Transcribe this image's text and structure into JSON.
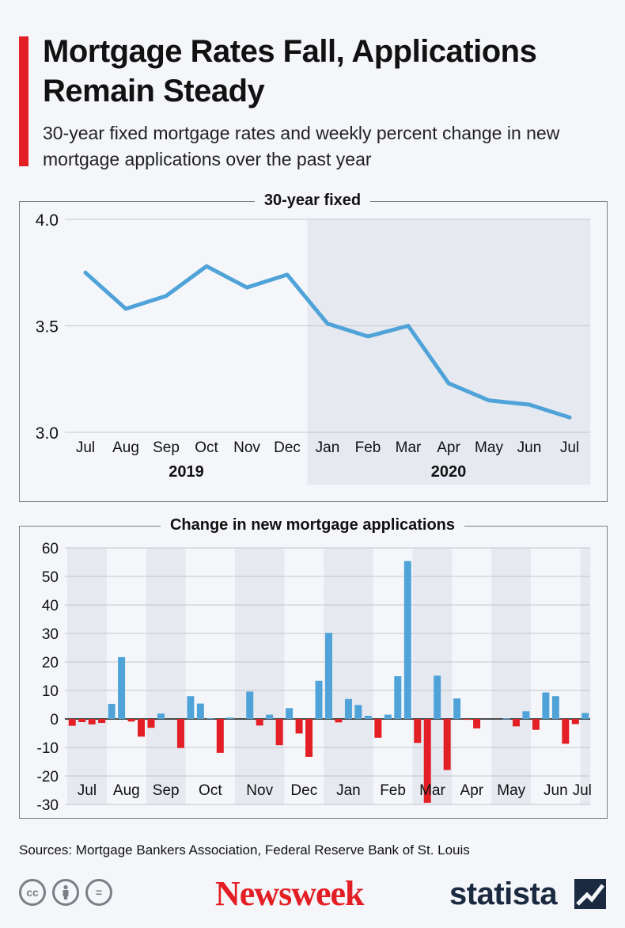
{
  "header": {
    "title": "Mortgage Rates Fall, Applications Remain Steady",
    "subtitle": "30-year fixed mortgage rates and weekly percent change in new mortgage applications over the past year"
  },
  "colors": {
    "accent": "#e31e24",
    "line": "#4fa3d8",
    "positive": "#4fa3d8",
    "negative": "#e31e24",
    "shade": "#e6e9f0",
    "grid": "#c3c7cd"
  },
  "chart_data": [
    {
      "type": "line",
      "title": "30-year fixed",
      "categories": [
        "Jul",
        "Aug",
        "Sep",
        "Oct",
        "Nov",
        "Dec",
        "Jan",
        "Feb",
        "Mar",
        "Apr",
        "May",
        "Jun",
        "Jul"
      ],
      "year_labels": [
        "2019",
        "2020"
      ],
      "shaded_from_category": "Jan",
      "series": [
        {
          "values": [
            3.75,
            3.58,
            3.64,
            3.78,
            3.68,
            3.74,
            3.51,
            3.45,
            3.5,
            3.23,
            3.15,
            3.13,
            3.07
          ]
        }
      ],
      "yticks": [
        3.0,
        3.5,
        4.0
      ],
      "ytick_labels": [
        "3.0",
        "3.5",
        "4.0"
      ],
      "ylim": [
        3.0,
        4.0
      ],
      "grid": true
    },
    {
      "type": "bar",
      "title": "Change in new mortgage applications",
      "month_labels": [
        "Jul",
        "Aug",
        "Sep",
        "Oct",
        "Nov",
        "Dec",
        "Jan",
        "Feb",
        "Mar",
        "Apr",
        "May",
        "Jun",
        "Jul"
      ],
      "values": [
        -2.4,
        -1.1,
        -1.9,
        -1.4,
        5.3,
        21.7,
        -0.9,
        -6.2,
        -3.1,
        1.9,
        0,
        -10.2,
        8.0,
        5.4,
        0.3,
        -11.9,
        0.5,
        0,
        9.6,
        -2.3,
        1.5,
        -9.2,
        3.8,
        -5.1,
        -13.3,
        13.4,
        30.2,
        -1.2,
        7.0,
        4.9,
        1.1,
        -6.6,
        1.5,
        15.0,
        55.4,
        -8.4,
        -29.4,
        15.2,
        -17.9,
        7.2,
        -0.3,
        -3.3,
        0,
        0,
        0.2,
        -2.6,
        2.7,
        -3.8,
        9.3,
        8.0,
        -8.7,
        -1.8,
        2.1
      ],
      "yticks": [
        -30,
        -20,
        -10,
        0,
        10,
        20,
        30,
        40,
        50,
        60
      ],
      "ytick_labels": [
        "-30",
        "-20",
        "-10",
        "0",
        "10",
        "20",
        "30",
        "40",
        "50",
        "60"
      ],
      "ylim": [
        -30,
        60
      ],
      "grid": true
    }
  ],
  "footer": {
    "sources": "Sources: Mortgage Bankers Association, Federal Reserve Bank of St. Louis",
    "cc_icons": [
      "cc-icon",
      "attribution-icon",
      "no-derivatives-icon"
    ],
    "cc_label": "cc",
    "nd_label": "=",
    "newsweek_logo": "Newsweek",
    "statista_logo": "statista"
  }
}
